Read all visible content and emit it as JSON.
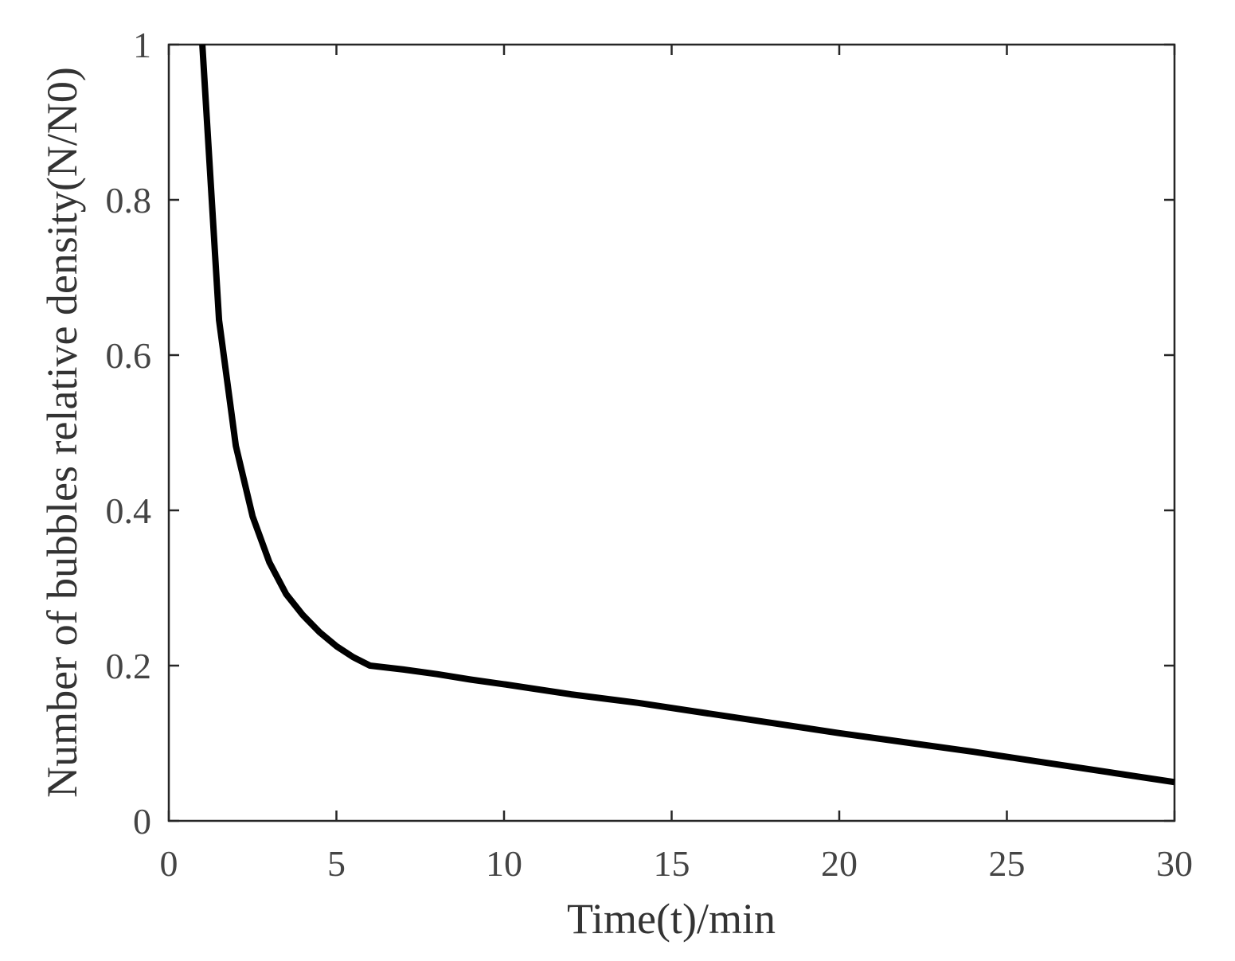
{
  "chart_data": {
    "type": "line",
    "title": "",
    "xlabel": "Time(t)/min",
    "ylabel": "Number of bubbles relative density(N/N0)",
    "xlim": [
      0,
      30
    ],
    "ylim": [
      0,
      1
    ],
    "xticks": [
      0,
      5,
      10,
      15,
      20,
      25,
      30
    ],
    "xtick_labels": [
      "0",
      "5",
      "10",
      "15",
      "20",
      "25",
      "30"
    ],
    "yticks": [
      0,
      0.2,
      0.4,
      0.6,
      0.8,
      1
    ],
    "ytick_labels": [
      "0",
      "0.2",
      "0.4",
      "0.6",
      "0.8",
      "1"
    ],
    "grid": false,
    "legend": "none",
    "series": [
      {
        "color": "#000000",
        "x": [
          1.0,
          1.5,
          2.0,
          2.5,
          3.0,
          3.5,
          4.0,
          4.5,
          5.0,
          5.5,
          6.0,
          7.0,
          8.0,
          9.0,
          10.0,
          12.0,
          14.0,
          16.0,
          18.0,
          20.0,
          22.0,
          24.0,
          26.0,
          28.0,
          30.0
        ],
        "y": [
          1.0,
          0.645,
          0.483,
          0.392,
          0.333,
          0.292,
          0.265,
          0.243,
          0.225,
          0.211,
          0.2,
          0.195,
          0.189,
          0.182,
          0.176,
          0.163,
          0.152,
          0.139,
          0.126,
          0.113,
          0.101,
          0.089,
          0.076,
          0.063,
          0.05
        ]
      }
    ]
  }
}
